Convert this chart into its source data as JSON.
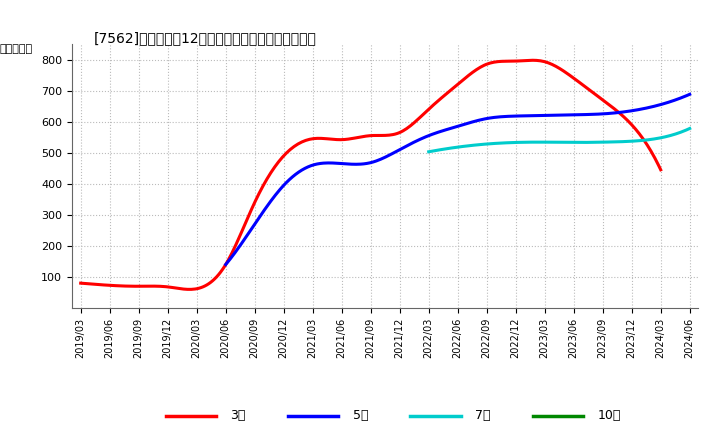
{
  "title": "[7562]　経常利益12か月移動合計の標準偏差の推移",
  "ylabel": "（百万円）",
  "ylim": [
    0,
    850
  ],
  "yticks": [
    100,
    200,
    300,
    400,
    500,
    600,
    700,
    800
  ],
  "background_color": "#ffffff",
  "grid_color": "#bbbbbb",
  "series": {
    "3年": {
      "color": "#ff0000",
      "data": [
        [
          "2019/03",
          80
        ],
        [
          "2019/06",
          73
        ],
        [
          "2019/09",
          70
        ],
        [
          "2019/12",
          68
        ],
        [
          "2020/03",
          62
        ],
        [
          "2020/06",
          140
        ],
        [
          "2020/09",
          340
        ],
        [
          "2020/12",
          490
        ],
        [
          "2021/03",
          545
        ],
        [
          "2021/06",
          542
        ],
        [
          "2021/09",
          555
        ],
        [
          "2021/12",
          565
        ],
        [
          "2022/03",
          640
        ],
        [
          "2022/06",
          720
        ],
        [
          "2022/09",
          785
        ],
        [
          "2022/12",
          795
        ],
        [
          "2023/03",
          793
        ],
        [
          "2023/06",
          740
        ],
        [
          "2023/09",
          670
        ],
        [
          "2023/12",
          590
        ],
        [
          "2024/03",
          445
        ],
        [
          "2024/06",
          null
        ]
      ]
    },
    "5年": {
      "color": "#0000ff",
      "data": [
        [
          "2019/03",
          null
        ],
        [
          "2019/06",
          null
        ],
        [
          "2019/09",
          null
        ],
        [
          "2019/12",
          null
        ],
        [
          "2020/03",
          null
        ],
        [
          "2020/06",
          140
        ],
        [
          "2020/09",
          270
        ],
        [
          "2020/12",
          395
        ],
        [
          "2021/03",
          460
        ],
        [
          "2021/06",
          465
        ],
        [
          "2021/09",
          468
        ],
        [
          "2021/12",
          510
        ],
        [
          "2022/03",
          555
        ],
        [
          "2022/06",
          585
        ],
        [
          "2022/09",
          610
        ],
        [
          "2022/12",
          618
        ],
        [
          "2023/03",
          620
        ],
        [
          "2023/06",
          622
        ],
        [
          "2023/09",
          625
        ],
        [
          "2023/12",
          635
        ],
        [
          "2024/03",
          655
        ],
        [
          "2024/06",
          688
        ]
      ]
    },
    "7年": {
      "color": "#00cccc",
      "data": [
        [
          "2019/03",
          null
        ],
        [
          "2019/06",
          null
        ],
        [
          "2019/09",
          null
        ],
        [
          "2019/12",
          null
        ],
        [
          "2020/03",
          null
        ],
        [
          "2020/06",
          null
        ],
        [
          "2020/09",
          null
        ],
        [
          "2020/12",
          null
        ],
        [
          "2021/03",
          null
        ],
        [
          "2021/06",
          null
        ],
        [
          "2021/09",
          null
        ],
        [
          "2021/12",
          null
        ],
        [
          "2022/03",
          503
        ],
        [
          "2022/06",
          518
        ],
        [
          "2022/09",
          528
        ],
        [
          "2022/12",
          533
        ],
        [
          "2023/03",
          534
        ],
        [
          "2023/06",
          533
        ],
        [
          "2023/09",
          534
        ],
        [
          "2023/12",
          537
        ],
        [
          "2024/03",
          548
        ],
        [
          "2024/06",
          578
        ]
      ]
    },
    "10年": {
      "color": "#008800",
      "data": [
        [
          "2019/03",
          null
        ],
        [
          "2019/06",
          null
        ],
        [
          "2019/09",
          null
        ],
        [
          "2019/12",
          null
        ],
        [
          "2020/03",
          null
        ],
        [
          "2020/06",
          null
        ],
        [
          "2020/09",
          null
        ],
        [
          "2020/12",
          null
        ],
        [
          "2021/03",
          null
        ],
        [
          "2021/06",
          null
        ],
        [
          "2021/09",
          null
        ],
        [
          "2021/12",
          null
        ],
        [
          "2022/03",
          null
        ],
        [
          "2022/06",
          null
        ],
        [
          "2022/09",
          null
        ],
        [
          "2022/12",
          null
        ],
        [
          "2023/03",
          null
        ],
        [
          "2023/06",
          null
        ],
        [
          "2023/09",
          null
        ],
        [
          "2023/12",
          null
        ],
        [
          "2024/03",
          null
        ],
        [
          "2024/06",
          null
        ]
      ]
    }
  },
  "xticks": [
    "2019/03",
    "2019/06",
    "2019/09",
    "2019/12",
    "2020/03",
    "2020/06",
    "2020/09",
    "2020/12",
    "2021/03",
    "2021/06",
    "2021/09",
    "2021/12",
    "2022/03",
    "2022/06",
    "2022/09",
    "2022/12",
    "2023/03",
    "2023/06",
    "2023/09",
    "2023/12",
    "2024/03",
    "2024/06"
  ],
  "legend_entries": [
    "3年",
    "5年",
    "7年",
    "10年"
  ],
  "legend_colors": [
    "#ff0000",
    "#0000ff",
    "#00cccc",
    "#008800"
  ]
}
